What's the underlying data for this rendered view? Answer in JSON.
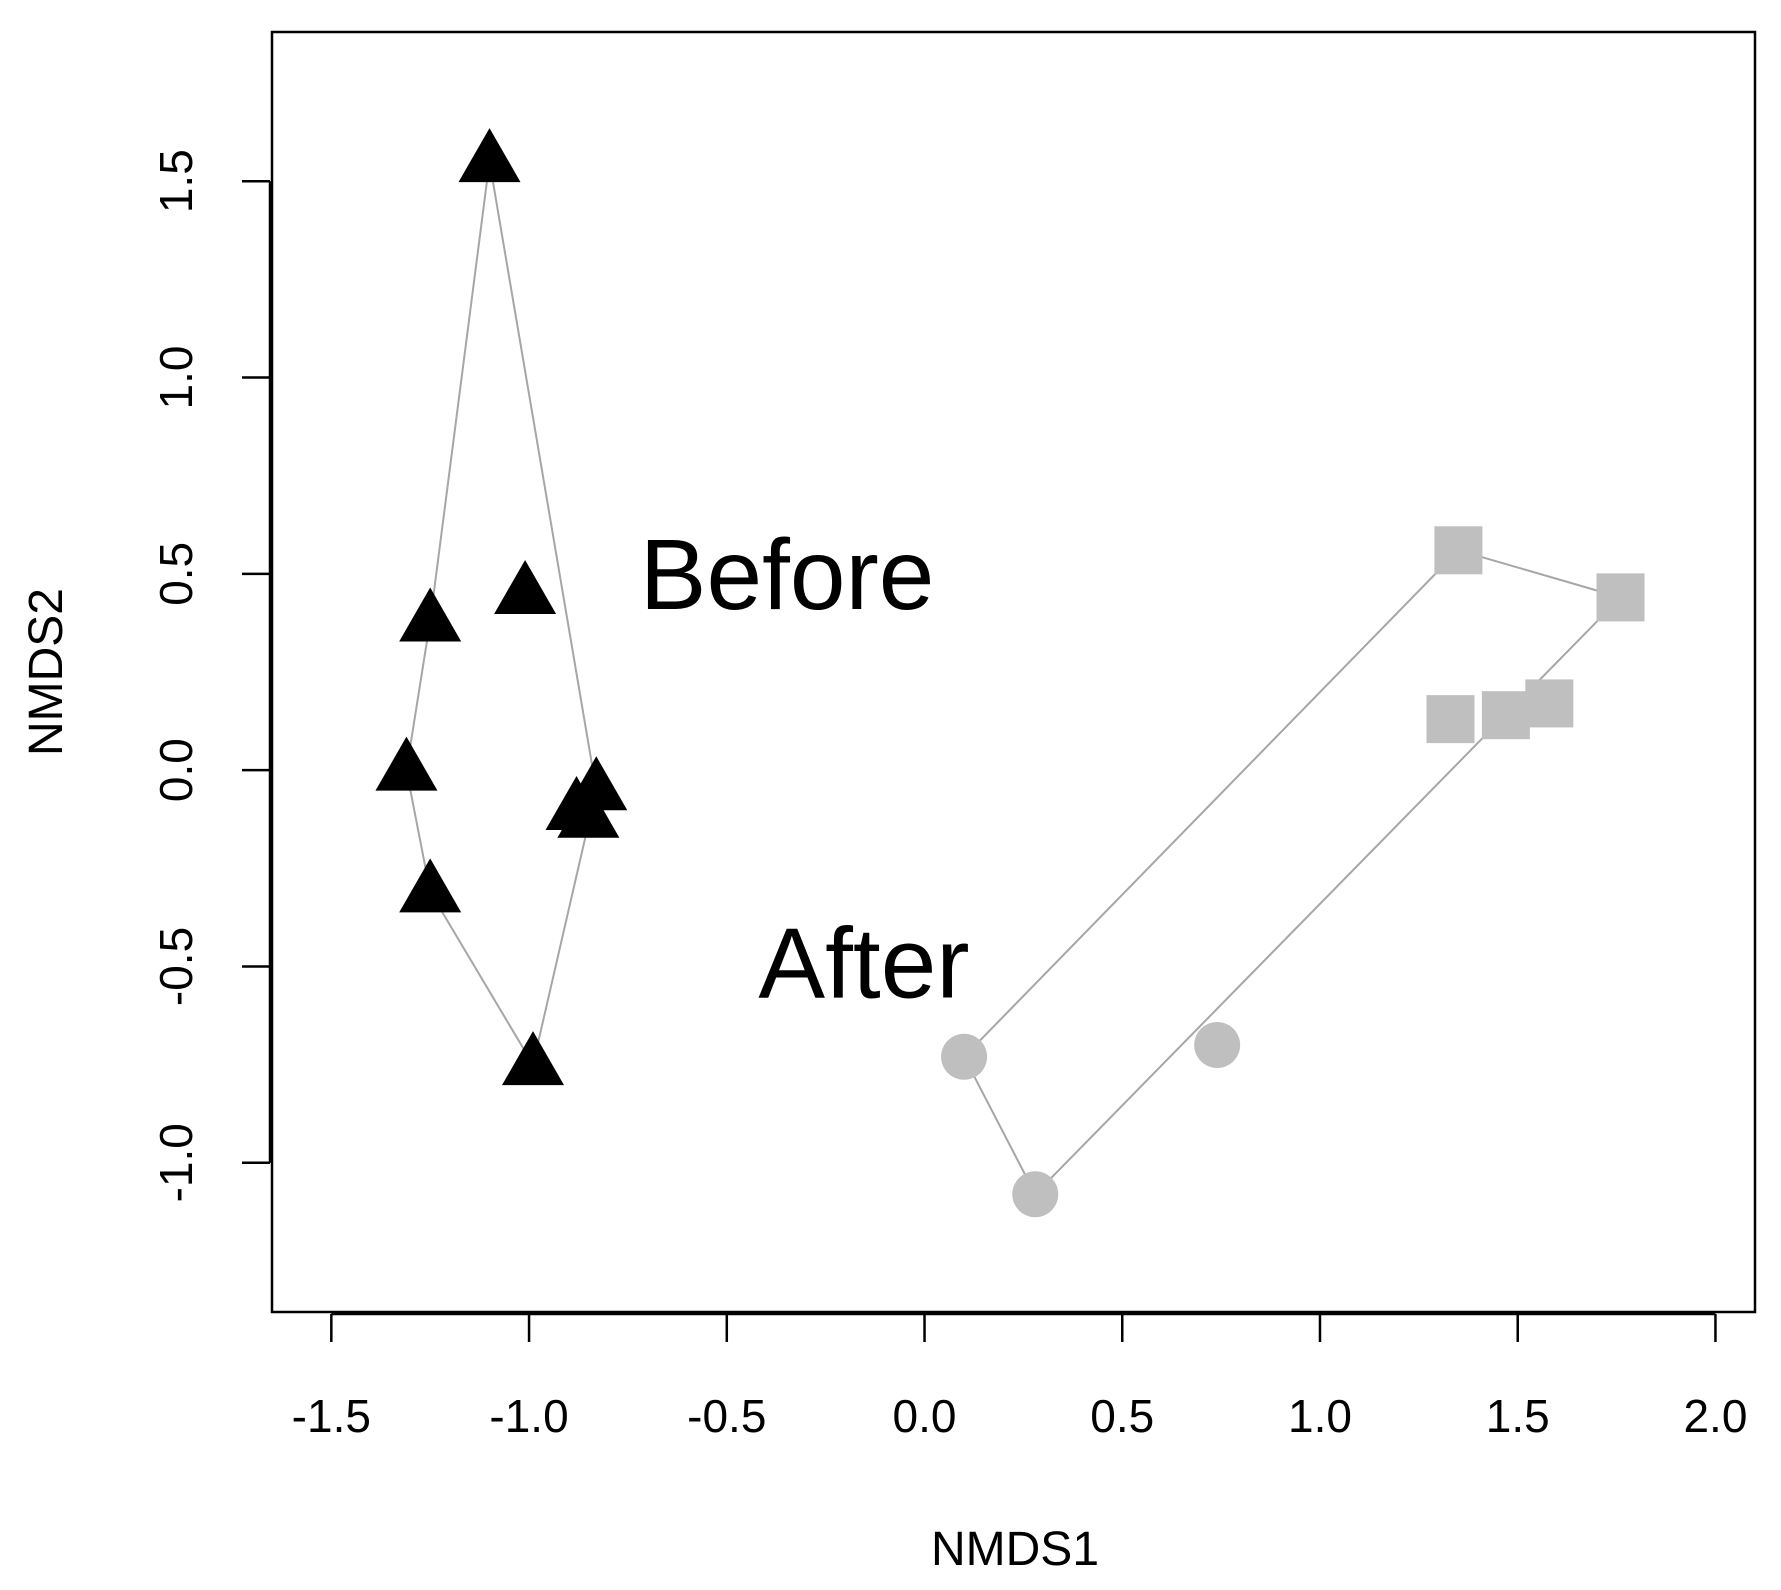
{
  "chart_data": {
    "type": "scatter",
    "title": "",
    "xlabel": "NMDS1",
    "ylabel": "NMDS2",
    "xlim": [
      -1.65,
      2.1
    ],
    "ylim": [
      -1.38,
      1.88
    ],
    "xticks": [
      -1.5,
      -1.0,
      -0.5,
      0.0,
      0.5,
      1.0,
      1.5,
      2.0
    ],
    "xtick_labels": [
      "-1.5",
      "-1.0",
      "-0.5",
      "0.0",
      "0.5",
      "1.0",
      "1.5",
      "2.0"
    ],
    "yticks": [
      -1.0,
      -0.5,
      0.0,
      0.5,
      1.0,
      1.5
    ],
    "ytick_labels": [
      "-1.0",
      "-0.5",
      "0.0",
      "0.5",
      "1.0",
      "1.5"
    ],
    "grid": false,
    "legend": "none",
    "series": [
      {
        "marker": "triangle",
        "color": "#000000",
        "points": [
          [
            -1.1,
            1.55
          ],
          [
            -1.25,
            0.38
          ],
          [
            -1.01,
            0.45
          ],
          [
            -1.31,
            0.0
          ],
          [
            -0.83,
            -0.05
          ],
          [
            -0.88,
            -0.1
          ],
          [
            -0.85,
            -0.12
          ],
          [
            -1.25,
            -0.31
          ],
          [
            -0.99,
            -0.75
          ]
        ],
        "hull": [
          [
            -1.1,
            1.55
          ],
          [
            -0.83,
            -0.05
          ],
          [
            -0.99,
            -0.75
          ],
          [
            -1.25,
            -0.31
          ],
          [
            -1.31,
            0.0
          ],
          [
            -1.25,
            0.38
          ]
        ]
      },
      {
        "marker": "square",
        "color": "#bfbfbf",
        "points": [
          [
            1.35,
            0.56
          ],
          [
            1.76,
            0.44
          ],
          [
            1.33,
            0.13
          ],
          [
            1.47,
            0.14
          ],
          [
            1.58,
            0.17
          ]
        ],
        "hull": [
          [
            1.35,
            0.56
          ],
          [
            1.76,
            0.44
          ],
          [
            0.28,
            -1.08
          ],
          [
            0.1,
            -0.73
          ]
        ]
      },
      {
        "marker": "circle",
        "color": "#bfbfbf",
        "points": [
          [
            0.1,
            -0.73
          ],
          [
            0.74,
            -0.7
          ],
          [
            0.28,
            -1.08
          ]
        ]
      }
    ],
    "annotations": [
      {
        "text": "Before",
        "x": -0.72,
        "y": 0.5
      },
      {
        "text": "After",
        "x": -0.42,
        "y": -0.49
      }
    ]
  }
}
